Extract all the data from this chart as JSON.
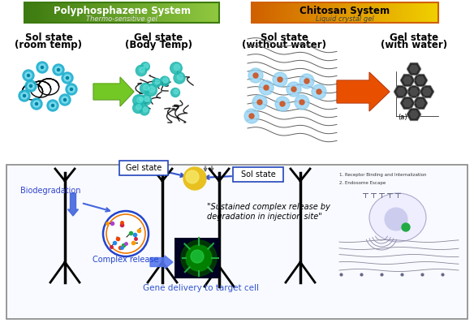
{
  "background_color": "#ffffff",
  "polyphosphazene_label": "Polyphosphazene System",
  "polyphosphazene_sublabel": "Thermo-sensitive gel",
  "chitosan_label": "Chitosan System",
  "chitosan_sublabel": "Liquid crystal gel",
  "sol_state1_label": "Sol state\n(room temp)",
  "gel_state1_label": "Gel state\n(Body Temp)",
  "sol_state2_label": "Sol state\n(without water)",
  "gel_state2_label": "Gel state\n(with water)",
  "bottom_box_color": "#f0f4ff",
  "bottom_box_edge": "#aaaaaa",
  "gel_state_box": "Gel state",
  "sol_state_box": "Sol state",
  "biodegradation_label": "Biodegradation",
  "complex_release_label": "Complex release",
  "sustained_release_text": "\"Sustained complex release by\ndegradation in injection site\"",
  "gene_delivery_label": "Gene delivery to target cell",
  "gel_state_label_a": "(a)"
}
